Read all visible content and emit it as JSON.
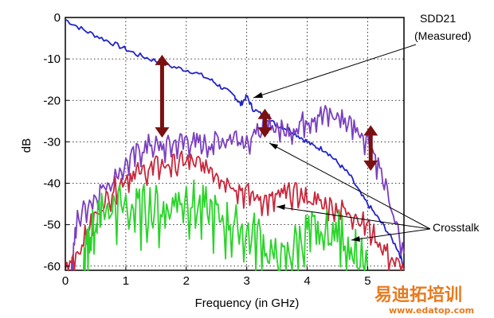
{
  "chart_data": {
    "type": "line",
    "xlabel": "Frequency (in GHz)",
    "ylabel": "dB",
    "xlim": [
      0,
      5.6
    ],
    "ylim": [
      -61,
      0
    ],
    "x_ticks": [
      "0",
      "1",
      "2",
      "3",
      "4",
      "5"
    ],
    "y_ticks": [
      "0",
      "-10",
      "-20",
      "-30",
      "-40",
      "-50",
      "-60"
    ],
    "grid": true,
    "series": [
      {
        "name": "SDD21 (Measured)",
        "color": "#2323c8",
        "x": [
          0,
          0.3,
          0.6,
          0.9,
          1.2,
          1.5,
          1.8,
          2.1,
          2.4,
          2.6,
          2.8,
          2.9,
          3.0,
          3.1,
          3.3,
          3.5,
          3.7,
          3.9,
          4.1,
          4.3,
          4.5,
          4.7,
          4.9,
          5.1,
          5.3,
          5.5,
          5.6
        ],
        "values": [
          -0.5,
          -3,
          -5,
          -7,
          -9,
          -10.5,
          -12,
          -13,
          -15,
          -17,
          -19,
          -21,
          -19,
          -22,
          -24,
          -26,
          -27,
          -29,
          -31,
          -32,
          -35,
          -38,
          -43,
          -47,
          -51,
          -56,
          -60
        ]
      },
      {
        "name": "Crosstalk (purple)",
        "color": "#7a3fbf",
        "x": [
          0.1,
          0.2,
          0.4,
          0.6,
          0.8,
          1.0,
          1.2,
          1.4,
          1.6,
          1.8,
          2.0,
          2.2,
          2.4,
          2.6,
          2.8,
          3.0,
          3.2,
          3.4,
          3.6,
          3.8,
          4.0,
          4.2,
          4.4,
          4.6,
          4.8,
          5.0,
          5.2,
          5.4,
          5.6
        ],
        "values": [
          -60,
          -48,
          -44,
          -41,
          -38,
          -35,
          -32,
          -30,
          -31,
          -30,
          -29,
          -30,
          -30,
          -29,
          -28,
          -29,
          -27,
          -25,
          -27,
          -26,
          -24,
          -23,
          -23,
          -24,
          -26,
          -29,
          -36,
          -46,
          -57
        ]
      },
      {
        "name": "Crosstalk (red)",
        "color": "#c8283c",
        "x": [
          0,
          0.2,
          0.4,
          0.6,
          0.8,
          1.0,
          1.2,
          1.4,
          1.6,
          1.8,
          2.0,
          2.2,
          2.4,
          2.6,
          2.8,
          3.0,
          3.2,
          3.4,
          3.6,
          3.8,
          4.0,
          4.2,
          4.4,
          4.6,
          4.8,
          5.0,
          5.2,
          5.4,
          5.6
        ],
        "values": [
          -61,
          -56,
          -50,
          -45,
          -41,
          -38,
          -37,
          -36,
          -35,
          -35,
          -34,
          -35,
          -36,
          -38,
          -40,
          -42,
          -43,
          -44,
          -42,
          -42,
          -43,
          -44,
          -45,
          -46,
          -47,
          -50,
          -54,
          -58,
          -61
        ]
      },
      {
        "name": "Crosstalk (green)",
        "color": "#2ad42a",
        "x": [
          0.3,
          0.4,
          0.5,
          0.6,
          0.8,
          1.0,
          1.2,
          1.4,
          1.6,
          1.8,
          2.0,
          2.2,
          2.4,
          2.6,
          2.8,
          3.0,
          3.2,
          3.4,
          3.6,
          3.8,
          4.0,
          4.2,
          4.4,
          4.6,
          4.8,
          5.0
        ],
        "values": [
          -61,
          -52,
          -48,
          -46,
          -45,
          -44,
          -46,
          -44,
          -46,
          -43,
          -42,
          -45,
          -46,
          -48,
          -49,
          -51,
          -52,
          -56,
          -59,
          -54,
          -51,
          -52,
          -50,
          -52,
          -55,
          -61
        ]
      }
    ],
    "annotations": [
      {
        "text": "SDD21",
        "line": 1
      },
      {
        "text": "(Measured)",
        "line": 2
      },
      {
        "text": "Crosstalk",
        "line": 1
      }
    ],
    "arrows": [
      {
        "x": 1.6,
        "y_top": -9,
        "y_bottom": -29
      },
      {
        "x": 3.3,
        "y_top": -22,
        "y_bottom": -29
      },
      {
        "x": 5.05,
        "y_top": -26,
        "y_bottom": -37
      }
    ]
  },
  "watermark": {
    "text_cn": "易迪拓培训",
    "url": "www.edatop.com"
  }
}
